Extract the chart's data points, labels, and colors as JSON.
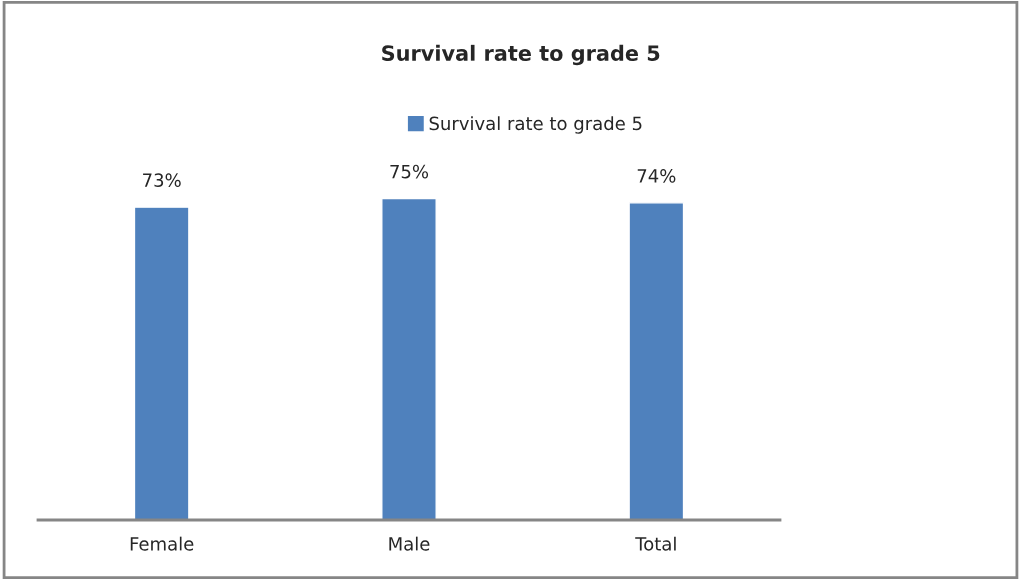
{
  "chart_data": {
    "type": "bar",
    "title": "Survival rate to grade 5",
    "categories": [
      "Female",
      "Male",
      "Total"
    ],
    "series": [
      {
        "name": "Survival rate to grade 5",
        "color": "#4f81bd",
        "values": [
          73,
          75,
          74
        ],
        "value_labels": [
          "73%",
          "75%",
          "74%"
        ]
      }
    ],
    "tick_labels": "x",
    "grid": false,
    "legend": "top"
  }
}
